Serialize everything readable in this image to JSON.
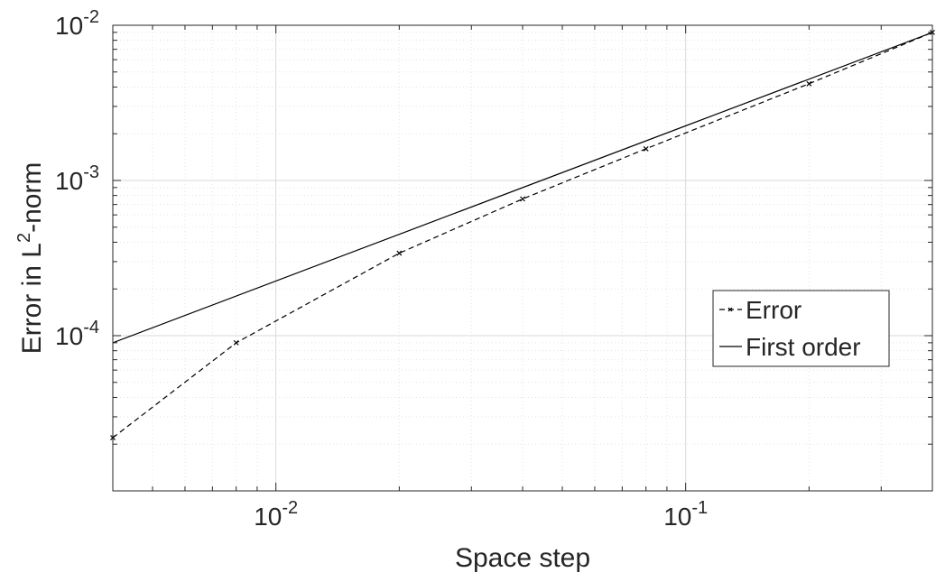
{
  "chart_data": {
    "type": "line",
    "x_scale": "log",
    "y_scale": "log",
    "xlabel": "Space step",
    "ylabel": {
      "base": "Error in L",
      "sup": "2",
      "suffix": "-norm"
    },
    "xlim": [
      0.004,
      0.4
    ],
    "ylim": [
      1e-05,
      0.01
    ],
    "grid": true,
    "minor_grid": true,
    "legend_position": "right",
    "x_ticks": [
      {
        "value": 0.01,
        "base": "10",
        "exp": "-2"
      },
      {
        "value": 0.1,
        "base": "10",
        "exp": "-1"
      }
    ],
    "y_ticks": [
      {
        "value": 0.0001,
        "base": "10",
        "exp": "-4"
      },
      {
        "value": 0.001,
        "base": "10",
        "exp": "-3"
      },
      {
        "value": 0.01,
        "base": "10",
        "exp": "-2"
      }
    ],
    "series": [
      {
        "name": "Error",
        "style": "dashed",
        "marker": "x",
        "color": "#000000",
        "x": [
          0.004,
          0.008,
          0.02,
          0.04,
          0.08,
          0.2,
          0.4
        ],
        "y": [
          2.2e-05,
          9e-05,
          0.00034,
          0.00076,
          0.0016,
          0.0042,
          0.009
        ]
      },
      {
        "name": "First order",
        "style": "solid",
        "marker": "none",
        "color": "#000000",
        "x": [
          0.004,
          0.4
        ],
        "y": [
          9e-05,
          0.009
        ]
      }
    ]
  }
}
